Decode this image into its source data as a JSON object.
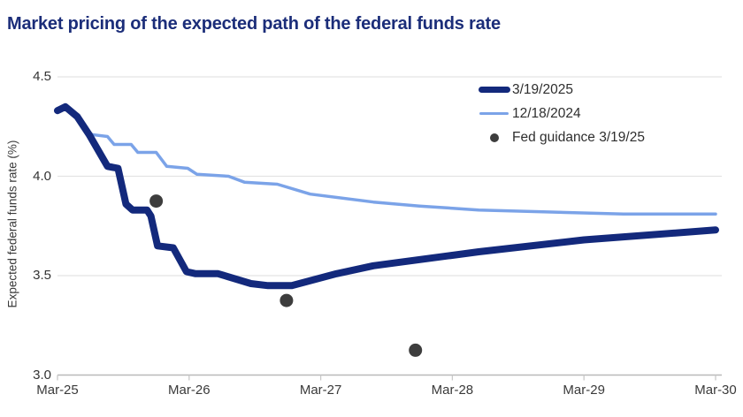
{
  "title": "Market pricing of the expected path of the federal funds rate",
  "colors": {
    "title_navy": "#1b2d79",
    "series_march": "#13297c",
    "series_december": "#7ba3e8",
    "fed_guidance_dot": "#3d3d3d",
    "gridline": "#e3e3e3",
    "axis_line": "#b9b9b9",
    "tick_mark": "#c9c9c9",
    "tick_text": "#3a3a3a"
  },
  "legend": {
    "items": [
      {
        "label": "3/19/2025",
        "swatch": "thick-line"
      },
      {
        "label": "12/18/2024",
        "swatch": "thin-line"
      },
      {
        "label": "Fed guidance 3/19/25",
        "swatch": "dot"
      }
    ]
  },
  "chart_data": {
    "type": "line",
    "title": "Market pricing of the expected path of the federal funds rate",
    "xlabel": "",
    "ylabel": "Expected federal funds rate (%)",
    "x_unit": "years after Mar-2025",
    "xlim": [
      0,
      5.05
    ],
    "ylim": [
      3.0,
      4.5
    ],
    "grid": "horizontal",
    "legend_position": "top-right",
    "x_ticks": [
      {
        "x": 0,
        "label": "Mar-25"
      },
      {
        "x": 1,
        "label": "Mar-26"
      },
      {
        "x": 2,
        "label": "Mar-27"
      },
      {
        "x": 3,
        "label": "Mar-28"
      },
      {
        "x": 4,
        "label": "Mar-29"
      },
      {
        "x": 5,
        "label": "Mar-30"
      }
    ],
    "y_ticks": [
      {
        "y": 3.0,
        "label": "3.0"
      },
      {
        "y": 3.5,
        "label": "3.5"
      },
      {
        "y": 4.0,
        "label": "4.0"
      },
      {
        "y": 4.5,
        "label": "4.5"
      }
    ],
    "series": [
      {
        "name": "12/18/2024",
        "kind": "line",
        "color": "#7ba3e8",
        "stroke_width": 3.5,
        "points": [
          [
            0.0,
            4.33
          ],
          [
            0.06,
            4.34
          ],
          [
            0.1,
            4.34
          ],
          [
            0.19,
            4.26
          ],
          [
            0.26,
            4.21
          ],
          [
            0.38,
            4.2
          ],
          [
            0.43,
            4.16
          ],
          [
            0.56,
            4.16
          ],
          [
            0.61,
            4.12
          ],
          [
            0.75,
            4.12
          ],
          [
            0.83,
            4.05
          ],
          [
            0.99,
            4.04
          ],
          [
            1.06,
            4.01
          ],
          [
            1.3,
            4.0
          ],
          [
            1.42,
            3.97
          ],
          [
            1.67,
            3.96
          ],
          [
            1.92,
            3.91
          ],
          [
            2.4,
            3.87
          ],
          [
            2.75,
            3.85
          ],
          [
            3.2,
            3.83
          ],
          [
            3.75,
            3.82
          ],
          [
            4.3,
            3.81
          ],
          [
            5.0,
            3.81
          ]
        ]
      },
      {
        "name": "3/19/2025",
        "kind": "line",
        "color": "#13297c",
        "stroke_width": 8,
        "points": [
          [
            0.0,
            4.33
          ],
          [
            0.06,
            4.35
          ],
          [
            0.15,
            4.3
          ],
          [
            0.24,
            4.21
          ],
          [
            0.31,
            4.13
          ],
          [
            0.38,
            4.05
          ],
          [
            0.46,
            4.04
          ],
          [
            0.52,
            3.86
          ],
          [
            0.57,
            3.83
          ],
          [
            0.68,
            3.83
          ],
          [
            0.71,
            3.8
          ],
          [
            0.76,
            3.65
          ],
          [
            0.88,
            3.64
          ],
          [
            0.98,
            3.52
          ],
          [
            1.05,
            3.51
          ],
          [
            1.22,
            3.51
          ],
          [
            1.47,
            3.46
          ],
          [
            1.6,
            3.45
          ],
          [
            1.78,
            3.45
          ],
          [
            2.12,
            3.51
          ],
          [
            2.4,
            3.55
          ],
          [
            3.2,
            3.62
          ],
          [
            4.0,
            3.68
          ],
          [
            5.0,
            3.73
          ]
        ]
      },
      {
        "name": "Fed guidance 3/19/25",
        "kind": "scatter",
        "color": "#3d3d3d",
        "radius": 7.5,
        "points": [
          [
            0.75,
            3.875
          ],
          [
            1.74,
            3.375
          ],
          [
            2.72,
            3.125
          ]
        ]
      }
    ]
  }
}
